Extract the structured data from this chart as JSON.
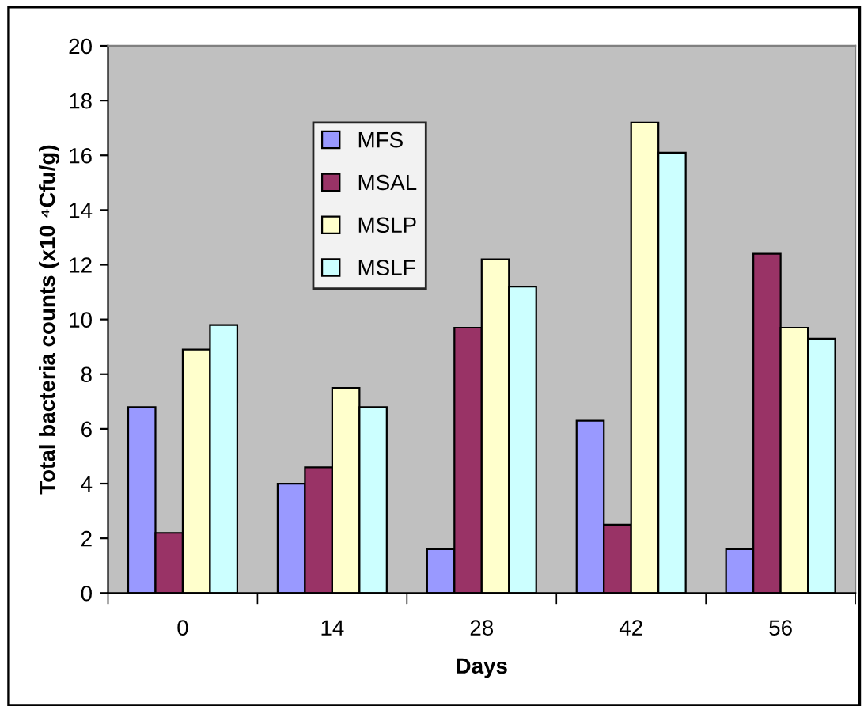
{
  "chart_data": {
    "type": "bar",
    "xlabel": "Days",
    "ylabel": "Total bacteria counts (x10 ⁴Cfu/g)",
    "categories": [
      "0",
      "14",
      "28",
      "42",
      "56"
    ],
    "series": [
      {
        "name": "MFS",
        "color": "#9999ff",
        "values": [
          6.8,
          4.0,
          1.6,
          6.3,
          1.6
        ]
      },
      {
        "name": "MSAL",
        "color": "#993366",
        "values": [
          2.2,
          4.6,
          9.7,
          2.5,
          12.4
        ]
      },
      {
        "name": "MSLP",
        "color": "#ffffcc",
        "values": [
          8.9,
          7.5,
          12.2,
          17.2,
          9.7
        ]
      },
      {
        "name": "MSLF",
        "color": "#ccffff",
        "values": [
          9.8,
          6.8,
          11.2,
          16.1,
          9.3
        ]
      }
    ],
    "ylim": [
      0,
      20
    ],
    "yticks": [
      0,
      2,
      4,
      6,
      8,
      10,
      12,
      14,
      16,
      18,
      20
    ],
    "grid": false,
    "legend": "top left"
  }
}
